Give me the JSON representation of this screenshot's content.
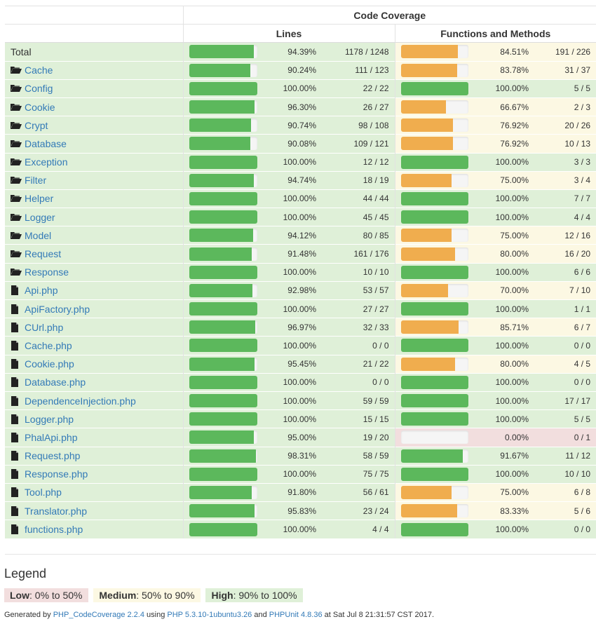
{
  "header": {
    "code_coverage": "Code Coverage",
    "lines": "Lines",
    "functions_and_methods": "Functions and Methods"
  },
  "colors": {
    "success": "#dff0d8",
    "warning": "#fcf8e3",
    "danger": "#f2dede",
    "bar_high": "#5cb85c",
    "bar_medium": "#f0ad4e"
  },
  "rows": [
    {
      "name": "Total",
      "type": "total",
      "lines_pct": "94.39%",
      "lines_frac": "1178 / 1248",
      "lines_val": 94.39,
      "fn_pct": "84.51%",
      "fn_frac": "191 / 226",
      "fn_val": 84.51
    },
    {
      "name": "Cache",
      "type": "folder",
      "lines_pct": "90.24%",
      "lines_frac": "111 / 123",
      "lines_val": 90.24,
      "fn_pct": "83.78%",
      "fn_frac": "31 / 37",
      "fn_val": 83.78
    },
    {
      "name": "Config",
      "type": "folder",
      "lines_pct": "100.00%",
      "lines_frac": "22 / 22",
      "lines_val": 100,
      "fn_pct": "100.00%",
      "fn_frac": "5 / 5",
      "fn_val": 100
    },
    {
      "name": "Cookie",
      "type": "folder",
      "lines_pct": "96.30%",
      "lines_frac": "26 / 27",
      "lines_val": 96.3,
      "fn_pct": "66.67%",
      "fn_frac": "2 / 3",
      "fn_val": 66.67
    },
    {
      "name": "Crypt",
      "type": "folder",
      "lines_pct": "90.74%",
      "lines_frac": "98 / 108",
      "lines_val": 90.74,
      "fn_pct": "76.92%",
      "fn_frac": "20 / 26",
      "fn_val": 76.92
    },
    {
      "name": "Database",
      "type": "folder",
      "lines_pct": "90.08%",
      "lines_frac": "109 / 121",
      "lines_val": 90.08,
      "fn_pct": "76.92%",
      "fn_frac": "10 / 13",
      "fn_val": 76.92
    },
    {
      "name": "Exception",
      "type": "folder",
      "lines_pct": "100.00%",
      "lines_frac": "12 / 12",
      "lines_val": 100,
      "fn_pct": "100.00%",
      "fn_frac": "3 / 3",
      "fn_val": 100
    },
    {
      "name": "Filter",
      "type": "folder",
      "lines_pct": "94.74%",
      "lines_frac": "18 / 19",
      "lines_val": 94.74,
      "fn_pct": "75.00%",
      "fn_frac": "3 / 4",
      "fn_val": 75
    },
    {
      "name": "Helper",
      "type": "folder",
      "lines_pct": "100.00%",
      "lines_frac": "44 / 44",
      "lines_val": 100,
      "fn_pct": "100.00%",
      "fn_frac": "7 / 7",
      "fn_val": 100
    },
    {
      "name": "Logger",
      "type": "folder",
      "lines_pct": "100.00%",
      "lines_frac": "45 / 45",
      "lines_val": 100,
      "fn_pct": "100.00%",
      "fn_frac": "4 / 4",
      "fn_val": 100
    },
    {
      "name": "Model",
      "type": "folder",
      "lines_pct": "94.12%",
      "lines_frac": "80 / 85",
      "lines_val": 94.12,
      "fn_pct": "75.00%",
      "fn_frac": "12 / 16",
      "fn_val": 75
    },
    {
      "name": "Request",
      "type": "folder",
      "lines_pct": "91.48%",
      "lines_frac": "161 / 176",
      "lines_val": 91.48,
      "fn_pct": "80.00%",
      "fn_frac": "16 / 20",
      "fn_val": 80
    },
    {
      "name": "Response",
      "type": "folder",
      "lines_pct": "100.00%",
      "lines_frac": "10 / 10",
      "lines_val": 100,
      "fn_pct": "100.00%",
      "fn_frac": "6 / 6",
      "fn_val": 100
    },
    {
      "name": "Api.php",
      "type": "file",
      "lines_pct": "92.98%",
      "lines_frac": "53 / 57",
      "lines_val": 92.98,
      "fn_pct": "70.00%",
      "fn_frac": "7 / 10",
      "fn_val": 70
    },
    {
      "name": "ApiFactory.php",
      "type": "file",
      "lines_pct": "100.00%",
      "lines_frac": "27 / 27",
      "lines_val": 100,
      "fn_pct": "100.00%",
      "fn_frac": "1 / 1",
      "fn_val": 100
    },
    {
      "name": "CUrl.php",
      "type": "file",
      "lines_pct": "96.97%",
      "lines_frac": "32 / 33",
      "lines_val": 96.97,
      "fn_pct": "85.71%",
      "fn_frac": "6 / 7",
      "fn_val": 85.71
    },
    {
      "name": "Cache.php",
      "type": "file",
      "lines_pct": "100.00%",
      "lines_frac": "0 / 0",
      "lines_val": 100,
      "fn_pct": "100.00%",
      "fn_frac": "0 / 0",
      "fn_val": 100
    },
    {
      "name": "Cookie.php",
      "type": "file",
      "lines_pct": "95.45%",
      "lines_frac": "21 / 22",
      "lines_val": 95.45,
      "fn_pct": "80.00%",
      "fn_frac": "4 / 5",
      "fn_val": 80
    },
    {
      "name": "Database.php",
      "type": "file",
      "lines_pct": "100.00%",
      "lines_frac": "0 / 0",
      "lines_val": 100,
      "fn_pct": "100.00%",
      "fn_frac": "0 / 0",
      "fn_val": 100
    },
    {
      "name": "DependenceInjection.php",
      "type": "file",
      "lines_pct": "100.00%",
      "lines_frac": "59 / 59",
      "lines_val": 100,
      "fn_pct": "100.00%",
      "fn_frac": "17 / 17",
      "fn_val": 100
    },
    {
      "name": "Logger.php",
      "type": "file",
      "lines_pct": "100.00%",
      "lines_frac": "15 / 15",
      "lines_val": 100,
      "fn_pct": "100.00%",
      "fn_frac": "5 / 5",
      "fn_val": 100
    },
    {
      "name": "PhalApi.php",
      "type": "file",
      "lines_pct": "95.00%",
      "lines_frac": "19 / 20",
      "lines_val": 95,
      "fn_pct": "0.00%",
      "fn_frac": "0 / 1",
      "fn_val": 0
    },
    {
      "name": "Request.php",
      "type": "file",
      "lines_pct": "98.31%",
      "lines_frac": "58 / 59",
      "lines_val": 98.31,
      "fn_pct": "91.67%",
      "fn_frac": "11 / 12",
      "fn_val": 91.67
    },
    {
      "name": "Response.php",
      "type": "file",
      "lines_pct": "100.00%",
      "lines_frac": "75 / 75",
      "lines_val": 100,
      "fn_pct": "100.00%",
      "fn_frac": "10 / 10",
      "fn_val": 100
    },
    {
      "name": "Tool.php",
      "type": "file",
      "lines_pct": "91.80%",
      "lines_frac": "56 / 61",
      "lines_val": 91.8,
      "fn_pct": "75.00%",
      "fn_frac": "6 / 8",
      "fn_val": 75
    },
    {
      "name": "Translator.php",
      "type": "file",
      "lines_pct": "95.83%",
      "lines_frac": "23 / 24",
      "lines_val": 95.83,
      "fn_pct": "83.33%",
      "fn_frac": "5 / 6",
      "fn_val": 83.33
    },
    {
      "name": "functions.php",
      "type": "file",
      "lines_pct": "100.00%",
      "lines_frac": "4 / 4",
      "lines_val": 100,
      "fn_pct": "100.00%",
      "fn_frac": "0 / 0",
      "fn_val": 100
    }
  ],
  "legend": {
    "title": "Legend",
    "low_label": "Low",
    "low_range": ": 0% to 50%",
    "medium_label": "Medium",
    "medium_range": ": 50% to 90%",
    "high_label": "High",
    "high_range": ": 90% to 100%"
  },
  "footer": {
    "prefix": "Generated by ",
    "tool_link": "PHP_CodeCoverage 2.2.4",
    "using": " using ",
    "php_link": "PHP 5.3.10-1ubuntu3.26",
    "and": " and ",
    "phpunit_link": "PHPUnit 4.8.36",
    "suffix": " at Sat Jul 8 21:31:57 CST 2017."
  }
}
